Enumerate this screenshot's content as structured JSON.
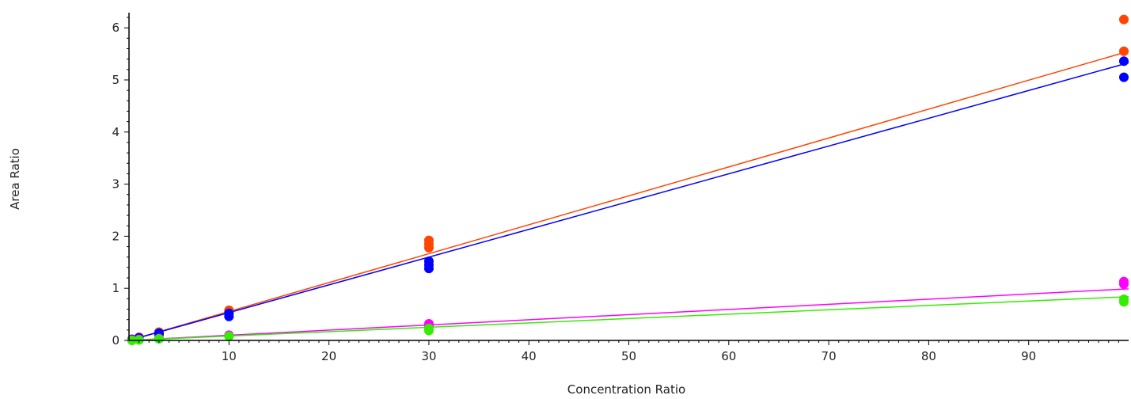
{
  "chart_data": {
    "type": "scatter",
    "title": "",
    "xlabel": "Concentration Ratio",
    "ylabel": "Area Ratio",
    "xlim": [
      0,
      100
    ],
    "ylim": [
      0,
      6.2
    ],
    "x_ticks": [
      10,
      20,
      30,
      40,
      50,
      60,
      70,
      80,
      90
    ],
    "y_ticks": [
      0,
      1,
      2,
      3,
      4,
      5,
      6
    ],
    "grid": false,
    "legend": "none",
    "series": [
      {
        "color": "#ff4500",
        "points": [
          [
            0.3,
            0.02
          ],
          [
            1,
            0.06
          ],
          [
            3,
            0.16
          ],
          [
            3,
            0.13
          ],
          [
            10,
            0.58
          ],
          [
            10,
            0.55
          ],
          [
            30,
            1.92
          ],
          [
            30,
            1.85
          ],
          [
            30,
            1.78
          ],
          [
            100,
            6.16
          ],
          [
            100,
            5.55
          ]
        ],
        "fit": [
          [
            0,
            0.0
          ],
          [
            100,
            5.55
          ]
        ]
      },
      {
        "color": "#0000ff",
        "points": [
          [
            0.3,
            0.02
          ],
          [
            1,
            0.05
          ],
          [
            3,
            0.14
          ],
          [
            3,
            0.11
          ],
          [
            10,
            0.52
          ],
          [
            10,
            0.46
          ],
          [
            30,
            1.52
          ],
          [
            30,
            1.45
          ],
          [
            30,
            1.38
          ],
          [
            100,
            5.36
          ],
          [
            100,
            5.05
          ]
        ],
        "fit": [
          [
            0,
            0.0
          ],
          [
            100,
            5.33
          ]
        ]
      },
      {
        "color": "#ff00ff",
        "points": [
          [
            0.3,
            0.01
          ],
          [
            1,
            0.02
          ],
          [
            3,
            0.04
          ],
          [
            10,
            0.1
          ],
          [
            30,
            0.32
          ],
          [
            30,
            0.28
          ],
          [
            100,
            1.13
          ],
          [
            100,
            1.08
          ]
        ],
        "fit": [
          [
            0,
            0.0
          ],
          [
            100,
            0.99
          ]
        ]
      },
      {
        "color": "#33ee00",
        "points": [
          [
            0.3,
            0.0
          ],
          [
            1,
            0.01
          ],
          [
            3,
            0.03
          ],
          [
            10,
            0.08
          ],
          [
            30,
            0.23
          ],
          [
            30,
            0.19
          ],
          [
            100,
            0.79
          ],
          [
            100,
            0.74
          ]
        ],
        "fit": [
          [
            0,
            0.0
          ],
          [
            100,
            0.84
          ]
        ]
      }
    ]
  }
}
